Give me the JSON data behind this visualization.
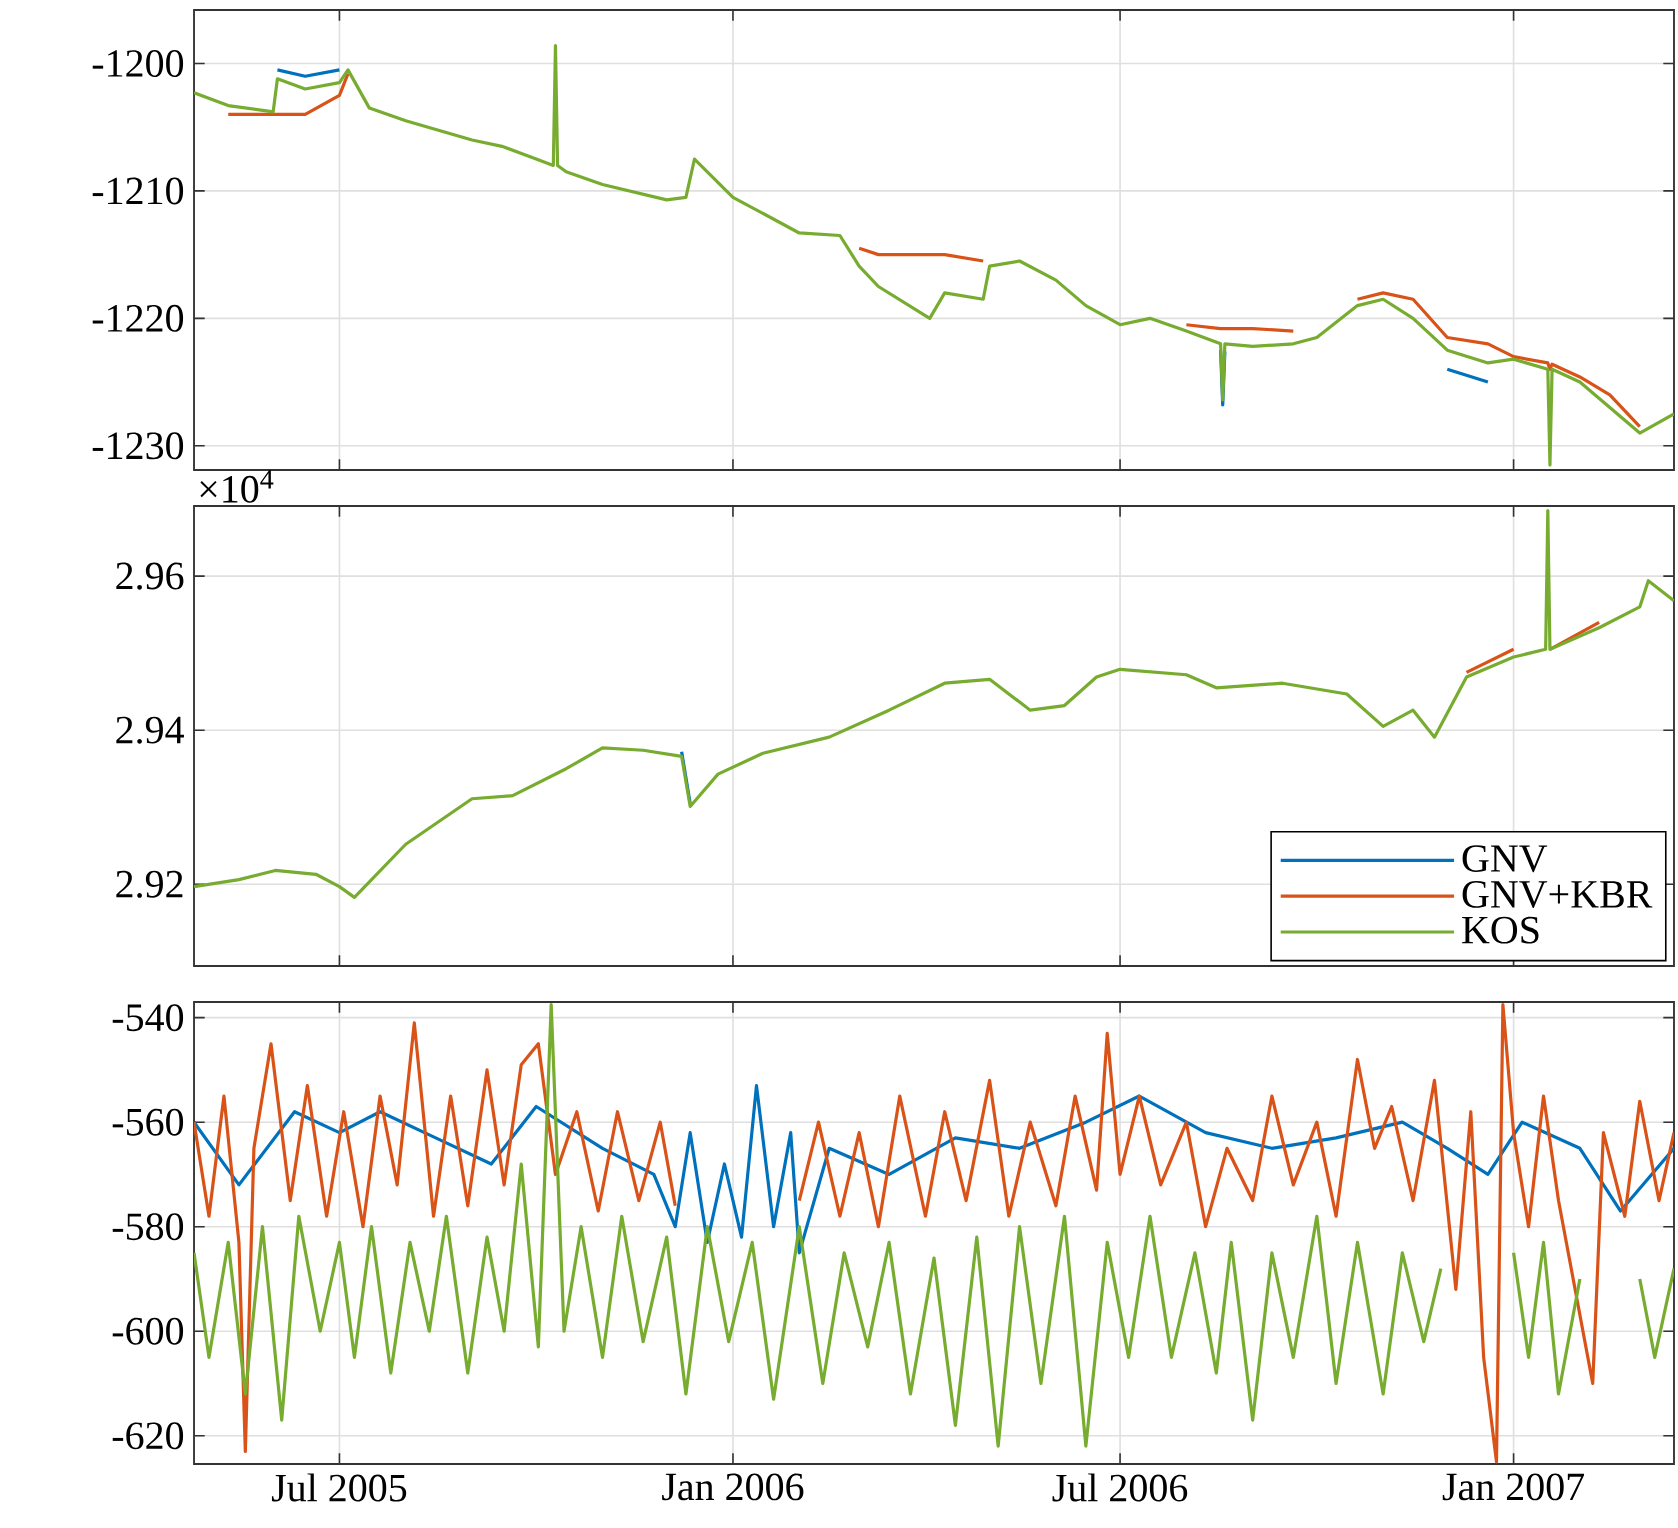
{
  "chart_data": [
    {
      "type": "line",
      "xlim": [
        "2005-04-24",
        "2007-03-17"
      ],
      "ylim": [
        -1231.9,
        -1195.8
      ],
      "tick_labels": "y",
      "grid": true,
      "xticks": [
        {
          "value": "2005-07-01",
          "label": null
        },
        {
          "value": "2006-01-01",
          "label": null
        },
        {
          "value": "2006-07-01",
          "label": null
        },
        {
          "value": "2007-01-01",
          "label": null
        }
      ],
      "yticks": [
        -1230,
        -1220,
        -1210,
        -1200
      ],
      "x": [
        "2005-04-24",
        "2005-05-10",
        "2005-05-31",
        "2005-06-02",
        "2005-06-15",
        "2005-07-01",
        "2005-07-05",
        "2005-07-15",
        "2005-08-01",
        "2005-09-01",
        "2005-09-15",
        "2005-10-01",
        "2005-10-09",
        "2005-10-10",
        "2005-10-11",
        "2005-10-15",
        "2005-11-01",
        "2005-12-01",
        "2005-12-10",
        "2005-12-14",
        "2006-01-01",
        "2006-02-01",
        "2006-02-20",
        "2006-03-01",
        "2006-03-10",
        "2006-04-03",
        "2006-04-10",
        "2006-04-28",
        "2006-05-01",
        "2006-05-15",
        "2006-06-01",
        "2006-06-15",
        "2006-07-01",
        "2006-07-15",
        "2006-08-01",
        "2006-08-17",
        "2006-08-18",
        "2006-08-19",
        "2006-09-01",
        "2006-09-20",
        "2006-10-01",
        "2006-10-20",
        "2006-11-01",
        "2006-11-15",
        "2006-12-01",
        "2006-12-20",
        "2007-01-01",
        "2007-01-17",
        "2007-01-18",
        "2007-01-19",
        "2007-02-01",
        "2007-02-15",
        "2007-03-01",
        "2007-03-17"
      ],
      "series": [
        {
          "color": "#0072bd",
          "values": [
            null,
            null,
            null,
            -1200.5,
            -1201,
            -1200.5,
            null,
            null,
            null,
            null,
            null,
            null,
            null,
            null,
            null,
            null,
            null,
            null,
            null,
            null,
            null,
            null,
            null,
            null,
            null,
            null,
            null,
            null,
            null,
            null,
            null,
            null,
            null,
            null,
            null,
            -1222.5,
            -1226.8,
            -1222.6,
            null,
            null,
            null,
            null,
            null,
            null,
            -1224,
            -1225,
            null,
            null,
            null,
            null,
            null,
            null,
            null,
            null
          ]
        },
        {
          "color": "#d95319",
          "values": [
            null,
            -1204,
            -1204,
            -1204,
            -1204,
            -1202.5,
            -1200.8,
            null,
            null,
            null,
            null,
            null,
            null,
            null,
            null,
            null,
            null,
            null,
            null,
            null,
            null,
            null,
            null,
            -1214.5,
            -1215,
            -1215,
            -1215,
            -1215.5,
            null,
            null,
            null,
            null,
            null,
            null,
            -1220.5,
            -1220.8,
            -1220.8,
            -1220.8,
            -1220.8,
            -1221,
            null,
            -1218.5,
            -1218,
            -1218.5,
            -1221.5,
            -1222,
            -1223,
            -1223.5,
            -1224,
            -1223.6,
            -1224.6,
            -1226,
            -1228.5,
            null
          ]
        },
        {
          "color": "#77ac30",
          "values": [
            -1202.3,
            -1203.3,
            -1203.8,
            -1201.2,
            -1202,
            -1201.5,
            -1200.5,
            -1203.5,
            -1204.5,
            -1206,
            -1206.5,
            -1207.5,
            -1208,
            -1198.6,
            -1208,
            -1208.5,
            -1209.5,
            -1210.7,
            -1210.5,
            -1207.5,
            -1210.5,
            -1213.3,
            -1213.5,
            -1215.9,
            -1217.5,
            -1220,
            -1218,
            -1218.5,
            -1215.9,
            -1215.5,
            -1217,
            -1219,
            -1220.5,
            -1220,
            -1221,
            -1222,
            -1226.4,
            -1222,
            -1222.2,
            -1222,
            -1221.5,
            -1219,
            -1218.5,
            -1220,
            -1222.5,
            -1223.5,
            -1223.2,
            -1224,
            -1231.5,
            -1224,
            -1225,
            -1227,
            -1229,
            -1227.5
          ]
        }
      ]
    },
    {
      "type": "line",
      "xlim": [
        "2005-04-24",
        "2007-03-17"
      ],
      "ylim": [
        2.9094,
        2.9691
      ],
      "tick_labels": "y",
      "grid": true,
      "legend": "bottom right",
      "annotations": [
        "×10$^{4}$"
      ],
      "xticks": [
        {
          "value": "2005-07-01",
          "label": null
        },
        {
          "value": "2006-01-01",
          "label": null
        },
        {
          "value": "2006-07-01",
          "label": null
        },
        {
          "value": "2007-01-01",
          "label": null
        }
      ],
      "yticks": [
        2.92,
        2.94,
        2.96
      ],
      "x": [
        "2005-04-24",
        "2005-05-15",
        "2005-06-01",
        "2005-06-20",
        "2005-07-01",
        "2005-07-08",
        "2005-08-01",
        "2005-09-01",
        "2005-09-20",
        "2005-10-15",
        "2005-11-01",
        "2005-11-20",
        "2005-12-08",
        "2005-12-12",
        "2005-12-25",
        "2006-01-15",
        "2006-02-15",
        "2006-03-15",
        "2006-04-10",
        "2006-05-01",
        "2006-05-20",
        "2006-06-05",
        "2006-06-20",
        "2006-07-01",
        "2006-08-01",
        "2006-08-15",
        "2006-09-15",
        "2006-10-15",
        "2006-11-01",
        "2006-11-15",
        "2006-11-25",
        "2006-12-10",
        "2007-01-01",
        "2007-01-16",
        "2007-01-17",
        "2007-01-18",
        "2007-02-10",
        "2007-03-01",
        "2007-03-05",
        "2007-03-17"
      ],
      "series": [
        {
          "name": "GNV",
          "color": "#0072bd",
          "values": [
            null,
            null,
            null,
            null,
            null,
            null,
            null,
            null,
            null,
            null,
            null,
            null,
            2.9372,
            2.9305,
            null,
            null,
            null,
            null,
            null,
            null,
            null,
            null,
            null,
            null,
            null,
            null,
            null,
            null,
            null,
            null,
            null,
            null,
            null,
            null,
            null,
            null,
            null,
            null,
            null,
            null
          ]
        },
        {
          "name": "GNV+KBR",
          "color": "#d95319",
          "values": [
            null,
            null,
            null,
            null,
            null,
            null,
            null,
            null,
            null,
            null,
            null,
            null,
            null,
            null,
            null,
            null,
            null,
            null,
            null,
            null,
            null,
            null,
            null,
            null,
            null,
            null,
            null,
            null,
            null,
            null,
            null,
            2.9475,
            2.9505,
            null,
            null,
            2.9505,
            2.954,
            null,
            null,
            null
          ]
        },
        {
          "name": "KOS",
          "color": "#77ac30",
          "values": [
            2.9197,
            2.9206,
            2.9218,
            2.9213,
            2.9197,
            2.9183,
            2.9252,
            2.9311,
            2.9315,
            2.935,
            2.9377,
            2.9374,
            2.9366,
            2.9301,
            2.9343,
            2.937,
            2.9391,
            2.9426,
            2.9461,
            2.9466,
            2.9426,
            2.9432,
            2.9469,
            2.9479,
            2.9472,
            2.9455,
            2.9461,
            2.9447,
            2.9405,
            2.9426,
            2.9391,
            2.9469,
            2.9495,
            2.9505,
            2.9685,
            2.9505,
            2.9533,
            2.956,
            2.9594,
            2.9568
          ]
        }
      ]
    },
    {
      "type": "line",
      "xlim": [
        "2005-04-24",
        "2007-03-17"
      ],
      "ylim": [
        -625.4,
        -537
      ],
      "grid": true,
      "xticks": [
        {
          "value": "2005-07-01",
          "label": "Jul 2005"
        },
        {
          "value": "2006-01-01",
          "label": "Jan 2006"
        },
        {
          "value": "2006-07-01",
          "label": "Jul 2006"
        },
        {
          "value": "2007-01-01",
          "label": "Jan 2007"
        }
      ],
      "yticks": [
        -620,
        -600,
        -580,
        -560,
        -540
      ],
      "series": [
        {
          "color": "#0072bd",
          "x": [
            "2005-04-24",
            "2005-05-15",
            "2005-06-10",
            "2005-07-01",
            "2005-07-20",
            "2005-08-15",
            "2005-09-10",
            "2005-10-01",
            "2005-11-01",
            "2005-11-25",
            "2005-12-05",
            "2005-12-12",
            "2005-12-20",
            "2005-12-28",
            "2006-01-05",
            "2006-01-12",
            "2006-01-20",
            "2006-01-28",
            "2006-02-01",
            "2006-02-15",
            "2006-03-15",
            "2006-04-15",
            "2006-05-15",
            "2006-06-15",
            "2006-07-10",
            "2006-08-10",
            "2006-09-10",
            "2006-10-10",
            "2006-11-10",
            "2006-12-01",
            "2006-12-20",
            "2007-01-05",
            "2007-02-01",
            "2007-02-20",
            "2007-03-17"
          ],
          "values": [
            -560,
            -572,
            -558,
            -562,
            -558,
            -563,
            -568,
            -557,
            -565,
            -570,
            -580,
            -562,
            -583,
            -568,
            -582,
            -553,
            -580,
            -562,
            -585,
            -565,
            -570,
            -563,
            -565,
            -560,
            -555,
            -562,
            -565,
            -563,
            -560,
            -565,
            -570,
            -560,
            -565,
            -577,
            -565
          ]
        },
        {
          "color": "#d95319",
          "x": [
            "2005-04-24",
            "2005-05-01",
            "2005-05-08",
            "2005-05-15",
            "2005-05-18",
            "2005-05-22",
            "2005-05-30",
            "2005-06-08",
            "2005-06-16",
            "2005-06-25",
            "2005-07-03",
            "2005-07-12",
            "2005-07-20",
            "2005-07-28",
            "2005-08-05",
            "2005-08-14",
            "2005-08-22",
            "2005-08-30",
            "2005-09-08",
            "2005-09-16",
            "2005-09-24",
            "2005-10-02",
            "2005-10-10",
            "2005-10-20",
            "2005-10-30",
            "2005-11-08",
            "2005-11-18",
            "2005-11-28",
            "2005-12-05",
            "2005-12-15",
            "2006-02-01",
            "2006-02-10",
            "2006-02-20",
            "2006-03-01",
            "2006-03-10",
            "2006-03-20",
            "2006-04-01",
            "2006-04-10",
            "2006-04-20",
            "2006-05-01",
            "2006-05-10",
            "2006-05-20",
            "2006-06-01",
            "2006-06-10",
            "2006-06-20",
            "2006-06-25",
            "2006-07-01",
            "2006-07-10",
            "2006-07-20",
            "2006-08-01",
            "2006-08-10",
            "2006-08-20",
            "2006-09-01",
            "2006-09-10",
            "2006-09-20",
            "2006-10-01",
            "2006-10-10",
            "2006-10-20",
            "2006-10-28",
            "2006-11-05",
            "2006-11-15",
            "2006-11-25",
            "2006-12-05",
            "2006-12-12",
            "2006-12-18",
            "2006-12-24",
            "2006-12-27",
            "2007-01-01",
            "2007-01-08",
            "2007-01-15",
            "2007-01-22",
            "2007-02-07",
            "2007-02-12",
            "2007-02-22",
            "2007-03-01",
            "2007-03-10",
            "2007-03-17"
          ],
          "values": [
            -560,
            -578,
            -555,
            -583,
            -623,
            -565,
            -545,
            -575,
            -553,
            -578,
            -558,
            -580,
            -555,
            -572,
            -541,
            -578,
            -555,
            -576,
            -550,
            -572,
            -549,
            -545,
            -570,
            -558,
            -577,
            -558,
            -575,
            -560,
            -576,
            null,
            -575,
            -560,
            -578,
            -562,
            -580,
            -555,
            -578,
            -558,
            -575,
            -552,
            -578,
            -560,
            -576,
            -555,
            -573,
            -543,
            -570,
            -555,
            -572,
            -560,
            -580,
            -565,
            -575,
            -555,
            -572,
            -560,
            -578,
            -548,
            -565,
            -557,
            -575,
            -552,
            -592,
            -558,
            -605,
            -625,
            -537.5,
            -562,
            -580,
            -555,
            -575,
            -610,
            -562,
            -578,
            -556,
            -575,
            -562
          ]
        },
        {
          "color": "#77ac30",
          "x": [
            "2005-04-24",
            "2005-05-01",
            "2005-05-10",
            "2005-05-18",
            "2005-05-26",
            "2005-06-04",
            "2005-06-12",
            "2005-06-22",
            "2005-07-01",
            "2005-07-08",
            "2005-07-16",
            "2005-07-25",
            "2005-08-03",
            "2005-08-12",
            "2005-08-20",
            "2005-08-30",
            "2005-09-08",
            "2005-09-16",
            "2005-09-24",
            "2005-10-02",
            "2005-10-08",
            "2005-10-14",
            "2005-10-22",
            "2005-11-01",
            "2005-11-10",
            "2005-11-20",
            "2005-12-01",
            "2005-12-10",
            "2005-12-20",
            "2005-12-30",
            "2006-01-10",
            "2006-01-20",
            "2006-02-01",
            "2006-02-12",
            "2006-02-22",
            "2006-03-05",
            "2006-03-15",
            "2006-03-25",
            "2006-04-05",
            "2006-04-15",
            "2006-04-25",
            "2006-05-05",
            "2006-05-15",
            "2006-05-25",
            "2006-06-05",
            "2006-06-15",
            "2006-06-25",
            "2006-07-05",
            "2006-07-15",
            "2006-07-25",
            "2006-08-05",
            "2006-08-15",
            "2006-08-22",
            "2006-09-01",
            "2006-09-10",
            "2006-09-20",
            "2006-10-01",
            "2006-10-10",
            "2006-10-20",
            "2006-11-01",
            "2006-11-10",
            "2006-11-20",
            "2006-11-28",
            "2006-12-15",
            "2007-01-01",
            "2007-01-08",
            "2007-01-15",
            "2007-01-22",
            "2007-02-01",
            "2007-02-15",
            "2007-03-01",
            "2007-03-08",
            "2007-03-17"
          ],
          "values": [
            -585,
            -605,
            -583,
            -612,
            -580,
            -617,
            -578,
            -600,
            -583,
            -605,
            -580,
            -608,
            -583,
            -600,
            -578,
            -608,
            -582,
            -600,
            -568,
            -603,
            -537.5,
            -600,
            -580,
            -605,
            -578,
            -602,
            -582,
            -612,
            -580,
            -602,
            -583,
            -613,
            -580,
            -610,
            -585,
            -603,
            -583,
            -612,
            -586,
            -618,
            -582,
            -622,
            -580,
            -610,
            -578,
            -622,
            -583,
            -605,
            -578,
            -605,
            -585,
            -608,
            -583,
            -617,
            -585,
            -605,
            -578,
            -610,
            -583,
            -612,
            -585,
            -602,
            -588,
            null,
            -585,
            -605,
            -583,
            -612,
            -590,
            null,
            -590,
            -605,
            -588
          ]
        }
      ]
    }
  ]
}
